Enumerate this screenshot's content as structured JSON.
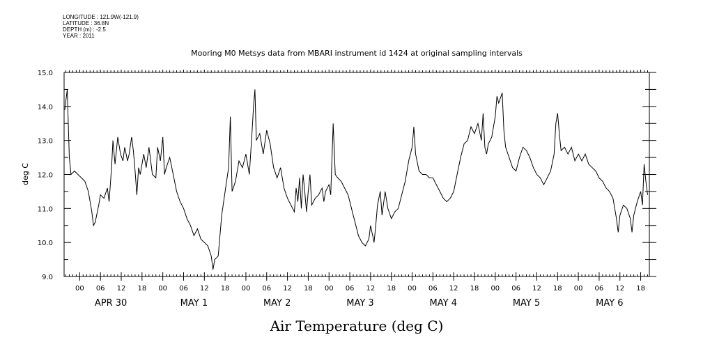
{
  "meta_lines": [
    "LONGITUDE : 121.9W(-121.9)",
    "LATITUDE : 36.8N",
    "DEPTH (m) : -2.5",
    "YEAR : 2011"
  ],
  "chart_data": {
    "type": "line",
    "title": "Mooring M0 Metsys data from MBARI instrument id 1424 at original sampling intervals",
    "xlabel": "Air Temperature (deg C)",
    "ylabel": "deg C",
    "ylim": [
      9.0,
      15.0
    ],
    "ytick_labels": [
      "9.0",
      "10.0",
      "11.0",
      "12.0",
      "13.0",
      "14.0",
      "15.0"
    ],
    "xlim_hours": [
      -4.5,
      164.5
    ],
    "x_unit": "hours from APR 30 00:00, 2011",
    "hour_tick_labels": [
      "00",
      "06",
      "12",
      "18"
    ],
    "day_labels": [
      "APR 30",
      "MAY  1",
      "MAY  2",
      "MAY  3",
      "MAY  4",
      "MAY  5",
      "MAY  6"
    ],
    "grid": false,
    "series": [
      {
        "color": "#000000",
        "points": [
          [
            -4.3,
            13.9
          ],
          [
            -3.6,
            14.5
          ],
          [
            -3.0,
            12.5
          ],
          [
            -2.5,
            12.0
          ],
          [
            -1.5,
            12.1
          ],
          [
            -0.5,
            12.0
          ],
          [
            0.5,
            11.9
          ],
          [
            1.5,
            11.8
          ],
          [
            2.5,
            11.5
          ],
          [
            3.5,
            10.9
          ],
          [
            4.0,
            10.5
          ],
          [
            4.5,
            10.6
          ],
          [
            5.5,
            11.1
          ],
          [
            6.0,
            11.4
          ],
          [
            7.0,
            11.3
          ],
          [
            8.0,
            11.6
          ],
          [
            8.5,
            11.2
          ],
          [
            9.2,
            12.2
          ],
          [
            9.6,
            13.0
          ],
          [
            10.2,
            12.3
          ],
          [
            11.0,
            13.1
          ],
          [
            11.8,
            12.6
          ],
          [
            12.5,
            12.4
          ],
          [
            13.0,
            12.8
          ],
          [
            13.8,
            12.4
          ],
          [
            14.3,
            12.6
          ],
          [
            15.0,
            13.1
          ],
          [
            15.5,
            12.7
          ],
          [
            16.0,
            12.1
          ],
          [
            16.5,
            11.4
          ],
          [
            17.0,
            12.2
          ],
          [
            17.5,
            12.0
          ],
          [
            18.5,
            12.6
          ],
          [
            19.2,
            12.2
          ],
          [
            20.0,
            12.8
          ],
          [
            20.5,
            12.4
          ],
          [
            21.0,
            12.0
          ],
          [
            22.0,
            11.9
          ],
          [
            22.5,
            12.8
          ],
          [
            23.3,
            12.4
          ],
          [
            24.0,
            13.1
          ],
          [
            24.5,
            12.0
          ],
          [
            25.0,
            12.2
          ],
          [
            26.0,
            12.5
          ],
          [
            27.0,
            12.0
          ],
          [
            28.0,
            11.5
          ],
          [
            29.0,
            11.2
          ],
          [
            30.0,
            11.0
          ],
          [
            31.0,
            10.7
          ],
          [
            32.0,
            10.5
          ],
          [
            33.0,
            10.2
          ],
          [
            34.0,
            10.4
          ],
          [
            35.0,
            10.1
          ],
          [
            36.0,
            10.0
          ],
          [
            37.0,
            9.9
          ],
          [
            38.0,
            9.6
          ],
          [
            38.5,
            9.2
          ],
          [
            39.0,
            9.5
          ],
          [
            40.0,
            9.6
          ],
          [
            41.0,
            10.8
          ],
          [
            42.0,
            11.5
          ],
          [
            43.0,
            12.2
          ],
          [
            43.5,
            13.7
          ],
          [
            44.0,
            11.5
          ],
          [
            45.0,
            11.8
          ],
          [
            46.0,
            12.4
          ],
          [
            47.0,
            12.2
          ],
          [
            48.0,
            12.6
          ],
          [
            49.0,
            12.0
          ],
          [
            49.8,
            13.3
          ],
          [
            50.2,
            14.0
          ],
          [
            50.6,
            14.5
          ],
          [
            51.0,
            13.0
          ],
          [
            52.0,
            13.2
          ],
          [
            53.0,
            12.6
          ],
          [
            54.0,
            13.3
          ],
          [
            55.0,
            12.9
          ],
          [
            56.0,
            12.2
          ],
          [
            57.0,
            11.9
          ],
          [
            58.0,
            12.2
          ],
          [
            59.0,
            11.6
          ],
          [
            60.0,
            11.3
          ],
          [
            61.0,
            11.1
          ],
          [
            62.0,
            10.9
          ],
          [
            62.5,
            11.6
          ],
          [
            63.0,
            11.2
          ],
          [
            63.5,
            11.9
          ],
          [
            64.0,
            11.0
          ],
          [
            64.5,
            12.0
          ],
          [
            65.0,
            11.5
          ],
          [
            65.5,
            10.9
          ],
          [
            66.0,
            11.5
          ],
          [
            66.5,
            12.0
          ],
          [
            67.0,
            11.1
          ],
          [
            68.0,
            11.3
          ],
          [
            69.0,
            11.4
          ],
          [
            70.0,
            11.6
          ],
          [
            70.5,
            11.2
          ],
          [
            71.0,
            11.5
          ],
          [
            72.0,
            11.7
          ],
          [
            72.5,
            11.4
          ],
          [
            73.2,
            13.5
          ],
          [
            73.8,
            12.0
          ],
          [
            74.5,
            11.9
          ],
          [
            75.5,
            11.8
          ],
          [
            76.5,
            11.6
          ],
          [
            77.5,
            11.4
          ],
          [
            78.5,
            11.0
          ],
          [
            79.5,
            10.6
          ],
          [
            80.5,
            10.2
          ],
          [
            81.5,
            10.0
          ],
          [
            82.5,
            9.9
          ],
          [
            83.5,
            10.1
          ],
          [
            84.0,
            10.5
          ],
          [
            85.0,
            10.0
          ],
          [
            85.5,
            10.5
          ],
          [
            86.0,
            11.1
          ],
          [
            86.8,
            11.5
          ],
          [
            87.3,
            10.8
          ],
          [
            88.2,
            11.5
          ],
          [
            89.0,
            11.0
          ],
          [
            90.0,
            10.7
          ],
          [
            91.0,
            10.9
          ],
          [
            92.0,
            11.0
          ],
          [
            93.0,
            11.4
          ],
          [
            94.0,
            11.8
          ],
          [
            95.0,
            12.4
          ],
          [
            96.0,
            12.8
          ],
          [
            96.5,
            13.4
          ],
          [
            97.0,
            12.6
          ],
          [
            98.0,
            12.1
          ],
          [
            99.0,
            12.0
          ],
          [
            100.0,
            12.0
          ],
          [
            101.0,
            11.9
          ],
          [
            102.0,
            11.9
          ],
          [
            103.0,
            11.7
          ],
          [
            104.0,
            11.5
          ],
          [
            105.0,
            11.3
          ],
          [
            106.0,
            11.2
          ],
          [
            107.0,
            11.3
          ],
          [
            108.0,
            11.5
          ],
          [
            109.0,
            12.0
          ],
          [
            110.0,
            12.5
          ],
          [
            111.0,
            12.9
          ],
          [
            112.0,
            13.0
          ],
          [
            113.0,
            13.4
          ],
          [
            114.0,
            13.2
          ],
          [
            115.0,
            13.5
          ],
          [
            116.0,
            13.0
          ],
          [
            116.5,
            13.8
          ],
          [
            117.0,
            12.8
          ],
          [
            117.5,
            12.6
          ],
          [
            118.0,
            12.9
          ],
          [
            119.0,
            13.1
          ],
          [
            120.0,
            13.7
          ],
          [
            120.5,
            14.3
          ],
          [
            121.0,
            14.1
          ],
          [
            122.0,
            14.4
          ],
          [
            122.5,
            13.3
          ],
          [
            123.0,
            12.8
          ],
          [
            124.0,
            12.5
          ],
          [
            125.0,
            12.2
          ],
          [
            126.0,
            12.1
          ],
          [
            127.0,
            12.5
          ],
          [
            128.0,
            12.8
          ],
          [
            129.0,
            12.7
          ],
          [
            130.0,
            12.5
          ],
          [
            131.0,
            12.2
          ],
          [
            132.0,
            12.0
          ],
          [
            133.0,
            11.9
          ],
          [
            134.0,
            11.7
          ],
          [
            135.0,
            11.9
          ],
          [
            136.0,
            12.1
          ],
          [
            137.0,
            12.6
          ],
          [
            137.5,
            13.5
          ],
          [
            138.0,
            13.8
          ],
          [
            138.5,
            13.2
          ],
          [
            139.0,
            12.7
          ],
          [
            140.0,
            12.8
          ],
          [
            141.0,
            12.6
          ],
          [
            142.0,
            12.8
          ],
          [
            143.0,
            12.4
          ],
          [
            144.0,
            12.6
          ],
          [
            145.0,
            12.4
          ],
          [
            146.0,
            12.6
          ],
          [
            147.0,
            12.3
          ],
          [
            148.0,
            12.2
          ],
          [
            149.0,
            12.1
          ],
          [
            150.0,
            11.9
          ],
          [
            151.0,
            11.8
          ],
          [
            152.0,
            11.6
          ],
          [
            153.0,
            11.5
          ],
          [
            154.0,
            11.3
          ],
          [
            155.0,
            10.7
          ],
          [
            155.5,
            10.3
          ],
          [
            156.0,
            10.8
          ],
          [
            157.0,
            11.1
          ],
          [
            158.0,
            11.0
          ],
          [
            159.0,
            10.7
          ],
          [
            159.5,
            10.3
          ],
          [
            160.0,
            10.8
          ],
          [
            161.0,
            11.2
          ],
          [
            162.0,
            11.5
          ],
          [
            162.5,
            11.1
          ],
          [
            163.0,
            12.3
          ],
          [
            163.5,
            11.8
          ],
          [
            164.0,
            11.4
          ]
        ]
      }
    ]
  }
}
